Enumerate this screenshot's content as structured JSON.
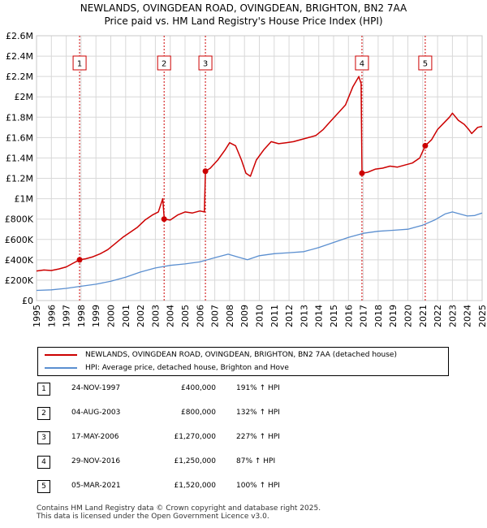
{
  "colors": {
    "price": "#cc0000",
    "hpi": "#5b8fd0",
    "grid": "#d8d8d8",
    "marker_line": "#cc0000"
  },
  "chart_data": {
    "type": "line",
    "title": "NEWLANDS, OVINGDEAN ROAD, OVINGDEAN, BRIGHTON, BN2 7AA",
    "subtitle": "Price paid vs. HM Land Registry's House Price Index (HPI)",
    "xlim": [
      1995,
      2025
    ],
    "ylim": [
      0,
      2600000
    ],
    "x_ticks": [
      1995,
      1996,
      1997,
      1998,
      1999,
      2000,
      2001,
      2002,
      2003,
      2004,
      2005,
      2006,
      2007,
      2008,
      2009,
      2010,
      2011,
      2012,
      2013,
      2014,
      2015,
      2016,
      2017,
      2018,
      2019,
      2020,
      2021,
      2022,
      2023,
      2024,
      2025
    ],
    "y_ticks": [
      {
        "value": 0,
        "label": "£0"
      },
      {
        "value": 200000,
        "label": "£200K"
      },
      {
        "value": 400000,
        "label": "£400K"
      },
      {
        "value": 600000,
        "label": "£600K"
      },
      {
        "value": 800000,
        "label": "£800K"
      },
      {
        "value": 1000000,
        "label": "£1M"
      },
      {
        "value": 1200000,
        "label": "£1.2M"
      },
      {
        "value": 1400000,
        "label": "£1.4M"
      },
      {
        "value": 1600000,
        "label": "£1.6M"
      },
      {
        "value": 1800000,
        "label": "£1.8M"
      },
      {
        "value": 2000000,
        "label": "£2M"
      },
      {
        "value": 2200000,
        "label": "£2.2M"
      },
      {
        "value": 2400000,
        "label": "£2.4M"
      },
      {
        "value": 2600000,
        "label": "£2.6M"
      }
    ],
    "series": [
      {
        "name": "NEWLANDS, OVINGDEAN ROAD, OVINGDEAN, BRIGHTON, BN2 7AA (detached house)",
        "points": [
          [
            1995,
            290000
          ],
          [
            1995.5,
            300000
          ],
          [
            1996,
            295000
          ],
          [
            1996.5,
            310000
          ],
          [
            1997,
            330000
          ],
          [
            1997.5,
            370000
          ],
          [
            1997.9,
            400000
          ],
          [
            1998.3,
            410000
          ],
          [
            1998.8,
            430000
          ],
          [
            1999.3,
            460000
          ],
          [
            1999.8,
            500000
          ],
          [
            2000.3,
            560000
          ],
          [
            2000.8,
            620000
          ],
          [
            2001.3,
            670000
          ],
          [
            2001.8,
            720000
          ],
          [
            2002.3,
            790000
          ],
          [
            2002.8,
            840000
          ],
          [
            2003.2,
            870000
          ],
          [
            2003.5,
            1000000
          ],
          [
            2003.6,
            800000
          ],
          [
            2004.0,
            790000
          ],
          [
            2004.5,
            840000
          ],
          [
            2005.0,
            870000
          ],
          [
            2005.5,
            860000
          ],
          [
            2006.0,
            880000
          ],
          [
            2006.3,
            870000
          ],
          [
            2006.37,
            1270000
          ],
          [
            2006.7,
            1300000
          ],
          [
            2007.2,
            1380000
          ],
          [
            2007.7,
            1480000
          ],
          [
            2008.0,
            1550000
          ],
          [
            2008.4,
            1520000
          ],
          [
            2008.8,
            1380000
          ],
          [
            2009.1,
            1250000
          ],
          [
            2009.4,
            1220000
          ],
          [
            2009.8,
            1380000
          ],
          [
            2010.3,
            1480000
          ],
          [
            2010.8,
            1560000
          ],
          [
            2011.3,
            1540000
          ],
          [
            2011.8,
            1550000
          ],
          [
            2012.3,
            1560000
          ],
          [
            2012.8,
            1580000
          ],
          [
            2013.3,
            1600000
          ],
          [
            2013.8,
            1620000
          ],
          [
            2014.3,
            1680000
          ],
          [
            2014.8,
            1760000
          ],
          [
            2015.3,
            1840000
          ],
          [
            2015.8,
            1920000
          ],
          [
            2016.3,
            2100000
          ],
          [
            2016.7,
            2200000
          ],
          [
            2016.85,
            2130000
          ],
          [
            2016.91,
            1250000
          ],
          [
            2017.3,
            1260000
          ],
          [
            2017.8,
            1290000
          ],
          [
            2018.3,
            1300000
          ],
          [
            2018.8,
            1320000
          ],
          [
            2019.3,
            1310000
          ],
          [
            2019.8,
            1330000
          ],
          [
            2020.3,
            1350000
          ],
          [
            2020.8,
            1400000
          ],
          [
            2021.17,
            1520000
          ],
          [
            2021.6,
            1580000
          ],
          [
            2022.0,
            1680000
          ],
          [
            2022.4,
            1740000
          ],
          [
            2022.8,
            1800000
          ],
          [
            2023.0,
            1840000
          ],
          [
            2023.4,
            1770000
          ],
          [
            2023.8,
            1730000
          ],
          [
            2024.1,
            1680000
          ],
          [
            2024.3,
            1640000
          ],
          [
            2024.7,
            1700000
          ],
          [
            2025.0,
            1710000
          ]
        ]
      },
      {
        "name": "HPI: Average price, detached house, Brighton and Hove",
        "points": [
          [
            1995,
            100000
          ],
          [
            1996,
            105000
          ],
          [
            1997,
            120000
          ],
          [
            1998,
            140000
          ],
          [
            1999,
            160000
          ],
          [
            2000,
            190000
          ],
          [
            2001,
            230000
          ],
          [
            2002,
            280000
          ],
          [
            2003,
            320000
          ],
          [
            2004,
            345000
          ],
          [
            2005,
            360000
          ],
          [
            2006,
            380000
          ],
          [
            2007,
            420000
          ],
          [
            2007.9,
            455000
          ],
          [
            2008.5,
            430000
          ],
          [
            2009.2,
            400000
          ],
          [
            2010,
            440000
          ],
          [
            2011,
            460000
          ],
          [
            2012,
            470000
          ],
          [
            2013,
            480000
          ],
          [
            2014,
            520000
          ],
          [
            2015,
            570000
          ],
          [
            2016,
            620000
          ],
          [
            2017,
            660000
          ],
          [
            2018,
            680000
          ],
          [
            2019,
            690000
          ],
          [
            2020,
            700000
          ],
          [
            2021,
            740000
          ],
          [
            2021.8,
            790000
          ],
          [
            2022.5,
            850000
          ],
          [
            2023,
            870000
          ],
          [
            2023.5,
            850000
          ],
          [
            2024,
            830000
          ],
          [
            2024.5,
            835000
          ],
          [
            2025,
            860000
          ]
        ]
      }
    ],
    "sales": [
      {
        "num": "1",
        "x": 1997.9,
        "y": 400000
      },
      {
        "num": "2",
        "x": 2003.59,
        "y": 800000
      },
      {
        "num": "3",
        "x": 2006.37,
        "y": 1270000
      },
      {
        "num": "4",
        "x": 2016.91,
        "y": 1250000
      },
      {
        "num": "5",
        "x": 2021.17,
        "y": 1520000
      }
    ]
  },
  "legend": {
    "price_label": "NEWLANDS, OVINGDEAN ROAD, OVINGDEAN, BRIGHTON, BN2 7AA (detached house)",
    "hpi_label": "HPI: Average price, detached house, Brighton and Hove"
  },
  "transactions": [
    {
      "num": "1",
      "date": "24-NOV-1997",
      "price": "£400,000",
      "hpi": "191% ↑ HPI"
    },
    {
      "num": "2",
      "date": "04-AUG-2003",
      "price": "£800,000",
      "hpi": "132% ↑ HPI"
    },
    {
      "num": "3",
      "date": "17-MAY-2006",
      "price": "£1,270,000",
      "hpi": "227% ↑ HPI"
    },
    {
      "num": "4",
      "date": "29-NOV-2016",
      "price": "£1,250,000",
      "hpi": "87% ↑ HPI"
    },
    {
      "num": "5",
      "date": "05-MAR-2021",
      "price": "£1,520,000",
      "hpi": "100% ↑ HPI"
    }
  ],
  "footer": {
    "line1": "Contains HM Land Registry data © Crown copyright and database right 2025.",
    "line2": "This data is licensed under the Open Government Licence v3.0."
  }
}
